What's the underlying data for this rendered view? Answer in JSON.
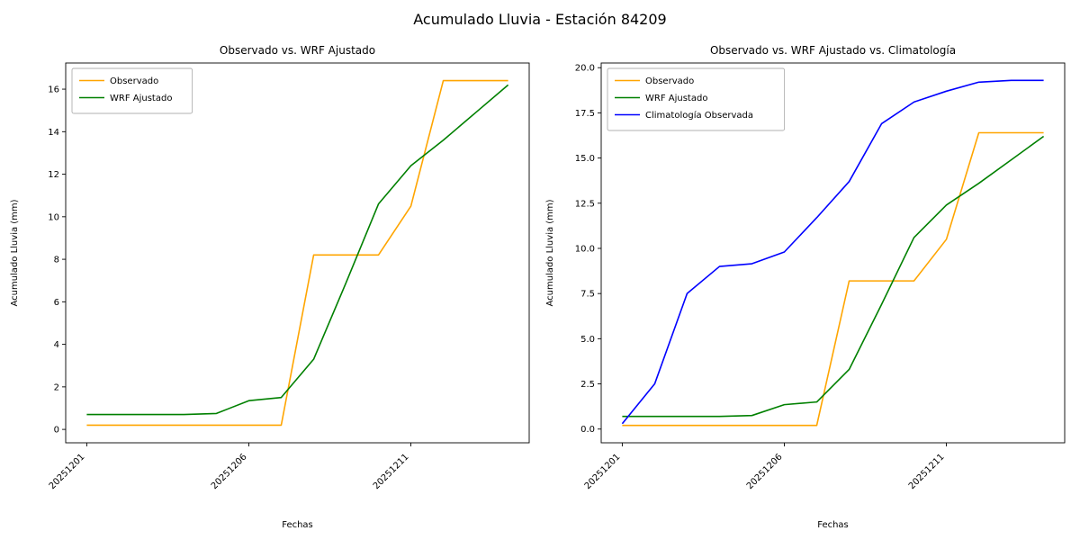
{
  "figure": {
    "title": "Acumulado Lluvia - Estación 84209"
  },
  "chart_data": [
    {
      "type": "line",
      "title": "Observado vs. WRF Ajustado",
      "xlabel": "Fechas",
      "ylabel": "Acumulado Lluvia (mm)",
      "x": [
        "20251201",
        "20251202",
        "20251203",
        "20251204",
        "20251205",
        "20251206",
        "20251207",
        "20251208",
        "20251209",
        "20251210",
        "20251211",
        "20251212",
        "20251213",
        "20251214"
      ],
      "xticks": [
        "20251201",
        "20251206",
        "20251211"
      ],
      "xlim": [
        -0.65,
        13.65
      ],
      "ylim": [
        -0.63,
        17.23
      ],
      "yticks": [
        "0",
        "2",
        "4",
        "6",
        "8",
        "10",
        "12",
        "14",
        "16"
      ],
      "legend_position": "upper left",
      "grid": false,
      "series": [
        {
          "name": "Observado",
          "color": "#ffa500",
          "values": [
            0.2,
            0.2,
            0.2,
            0.2,
            0.2,
            0.2,
            0.2,
            8.2,
            8.2,
            8.2,
            10.5,
            16.4,
            16.4,
            16.4
          ]
        },
        {
          "name": "WRF Ajustado",
          "color": "#008000",
          "values": [
            0.7,
            0.7,
            0.7,
            0.7,
            0.75,
            1.35,
            1.5,
            3.3,
            6.9,
            10.6,
            12.4,
            13.6,
            14.9,
            16.2
          ]
        }
      ]
    },
    {
      "type": "line",
      "title": "Observado vs. WRF Ajustado vs. Climatología",
      "xlabel": "Fechas",
      "ylabel": "Acumulado Lluvia (mm)",
      "x": [
        "20251201",
        "20251202",
        "20251203",
        "20251204",
        "20251205",
        "20251206",
        "20251207",
        "20251208",
        "20251209",
        "20251210",
        "20251211",
        "20251212",
        "20251213",
        "20251214"
      ],
      "xticks": [
        "20251201",
        "20251206",
        "20251211"
      ],
      "xlim": [
        -0.65,
        13.65
      ],
      "ylim": [
        -0.76,
        20.26
      ],
      "yticks": [
        "0.0",
        "2.5",
        "5.0",
        "7.5",
        "10.0",
        "12.5",
        "15.0",
        "17.5",
        "20.0"
      ],
      "legend_position": "upper left",
      "grid": false,
      "series": [
        {
          "name": "Observado",
          "color": "#ffa500",
          "values": [
            0.2,
            0.2,
            0.2,
            0.2,
            0.2,
            0.2,
            0.2,
            8.2,
            8.2,
            8.2,
            10.5,
            16.4,
            16.4,
            16.4
          ]
        },
        {
          "name": "WRF Ajustado",
          "color": "#008000",
          "values": [
            0.7,
            0.7,
            0.7,
            0.7,
            0.75,
            1.35,
            1.5,
            3.3,
            6.9,
            10.6,
            12.4,
            13.6,
            14.9,
            16.2
          ]
        },
        {
          "name": "Climatología Observada",
          "color": "#0000ff",
          "values": [
            0.3,
            2.5,
            7.5,
            9.0,
            9.15,
            9.8,
            11.7,
            13.7,
            16.9,
            18.1,
            18.7,
            19.2,
            19.3,
            19.3
          ]
        }
      ]
    }
  ]
}
